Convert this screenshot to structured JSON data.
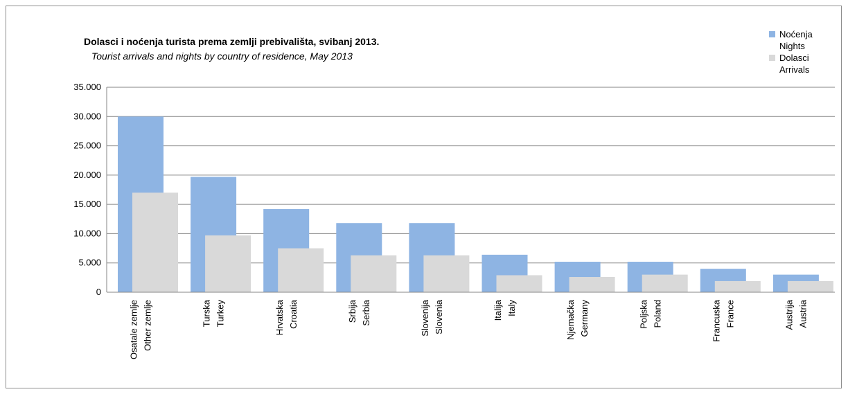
{
  "chart_data": {
    "type": "bar",
    "title": "Dolasci i noćenja turista prema zemlji prebivališta,  svibanj 2013.",
    "subtitle": "Tourist arrivals and nights by country of residence,  May 2013",
    "ylim": [
      0,
      35000
    ],
    "yticks": [
      0,
      5000,
      10000,
      15000,
      20000,
      25000,
      30000,
      35000
    ],
    "ytick_labels": [
      "0",
      "5.000",
      "10.000",
      "15.000",
      "20.000",
      "25.000",
      "30.000",
      "35.000"
    ],
    "grid": true,
    "legend_position": "top-right",
    "categories": [
      [
        "Osatale zemlje",
        "Other zemlje"
      ],
      [
        "Turska",
        "Turkey"
      ],
      [
        "Hrvatska",
        "Croatia"
      ],
      [
        "Srbija",
        "Serbia"
      ],
      [
        "Slovenija",
        "Slovenia"
      ],
      [
        "Italija",
        "Italy"
      ],
      [
        "Njemačka",
        "Germany"
      ],
      [
        "Poljska",
        "Poland"
      ],
      [
        "Francuska",
        "France"
      ],
      [
        "Austrija",
        "Austria"
      ]
    ],
    "series": [
      {
        "name": "Noćenja Nights",
        "name_lines": [
          "Noćenja",
          "Nights"
        ],
        "color": "#8eb4e3",
        "values": [
          30000,
          19700,
          14200,
          11800,
          11800,
          6400,
          5200,
          5200,
          4000,
          3000
        ]
      },
      {
        "name": "Dolasci Arrivals",
        "name_lines": [
          "Dolasci",
          "Arrivals"
        ],
        "color": "#d9d9d9",
        "values": [
          17000,
          9700,
          7500,
          6300,
          6300,
          2900,
          2600,
          3000,
          1900,
          1900
        ]
      }
    ]
  }
}
